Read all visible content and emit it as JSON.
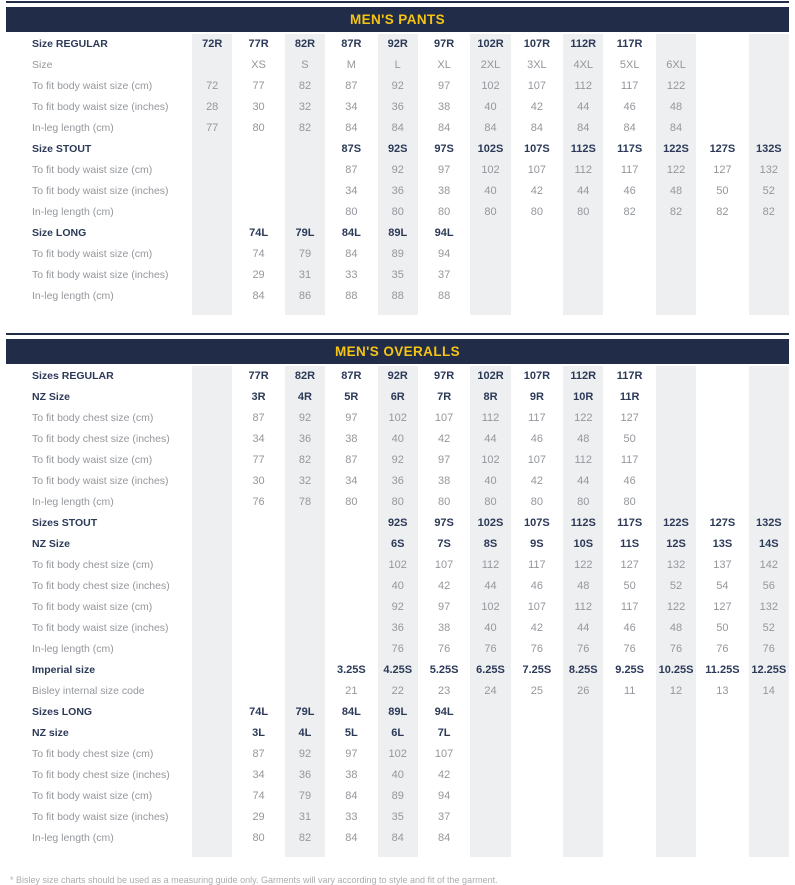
{
  "theme": {
    "navy": "#202c48",
    "yellow": "#f6c413",
    "band": "#eeeff1",
    "text-gray": "#94979c",
    "text-navy": "#2c3a58",
    "footnote-gray": "#a9acb0"
  },
  "footnote": "* Bisley size charts should be used as a measuring guide only. Garments will vary according to style and fit of the garment.",
  "tables": [
    {
      "title": "MEN'S PANTS",
      "rows": [
        {
          "label": "Size REGULAR",
          "style": "bold",
          "cells": [
            "72R",
            "77R",
            "82R",
            "87R",
            "92R",
            "97R",
            "102R",
            "107R",
            "112R",
            "117R",
            "",
            "",
            ""
          ]
        },
        {
          "label": "Size",
          "style": "normal",
          "cells": [
            "",
            "XS",
            "S",
            "M",
            "L",
            "XL",
            "2XL",
            "3XL",
            "4XL",
            "5XL",
            "6XL",
            "",
            ""
          ]
        },
        {
          "label": "To fit body waist size (cm)",
          "style": "normal",
          "cells": [
            "72",
            "77",
            "82",
            "87",
            "92",
            "97",
            "102",
            "107",
            "112",
            "117",
            "122",
            "",
            ""
          ]
        },
        {
          "label": "To fit body waist size (inches)",
          "style": "normal",
          "cells": [
            "28",
            "30",
            "32",
            "34",
            "36",
            "38",
            "40",
            "42",
            "44",
            "46",
            "48",
            "",
            ""
          ]
        },
        {
          "label": "In-leg length (cm)",
          "style": "normal",
          "cells": [
            "77",
            "80",
            "82",
            "84",
            "84",
            "84",
            "84",
            "84",
            "84",
            "84",
            "84",
            "",
            ""
          ]
        },
        {
          "label": "Size STOUT",
          "style": "bold",
          "cells": [
            "",
            "",
            "",
            "87S",
            "92S",
            "97S",
            "102S",
            "107S",
            "112S",
            "117S",
            "122S",
            "127S",
            "132S"
          ]
        },
        {
          "label": "To fit body waist size (cm)",
          "style": "normal",
          "cells": [
            "",
            "",
            "",
            "87",
            "92",
            "97",
            "102",
            "107",
            "112",
            "117",
            "122",
            "127",
            "132"
          ]
        },
        {
          "label": "To fit body waist size (inches)",
          "style": "normal",
          "cells": [
            "",
            "",
            "",
            "34",
            "36",
            "38",
            "40",
            "42",
            "44",
            "46",
            "48",
            "50",
            "52"
          ]
        },
        {
          "label": "In-leg length (cm)",
          "style": "normal",
          "cells": [
            "",
            "",
            "",
            "80",
            "80",
            "80",
            "80",
            "80",
            "80",
            "82",
            "82",
            "82",
            "82"
          ]
        },
        {
          "label": "Size LONG",
          "style": "bold",
          "cells": [
            "",
            "74L",
            "79L",
            "84L",
            "89L",
            "94L",
            "",
            "",
            "",
            "",
            "",
            "",
            ""
          ]
        },
        {
          "label": "To fit body waist size (cm)",
          "style": "normal",
          "cells": [
            "",
            "74",
            "79",
            "84",
            "89",
            "94",
            "",
            "",
            "",
            "",
            "",
            "",
            ""
          ]
        },
        {
          "label": "To fit body waist size (inches)",
          "style": "normal",
          "cells": [
            "",
            "29",
            "31",
            "33",
            "35",
            "37",
            "",
            "",
            "",
            "",
            "",
            "",
            ""
          ]
        },
        {
          "label": "In-leg length (cm)",
          "style": "normal",
          "cells": [
            "",
            "84",
            "86",
            "88",
            "88",
            "88",
            "",
            "",
            "",
            "",
            "",
            "",
            ""
          ]
        }
      ]
    },
    {
      "title": "MEN'S OVERALLS",
      "rows": [
        {
          "label": "Sizes REGULAR",
          "style": "bold",
          "cells": [
            "",
            "77R",
            "82R",
            "87R",
            "92R",
            "97R",
            "102R",
            "107R",
            "112R",
            "117R",
            "",
            "",
            ""
          ]
        },
        {
          "label": "NZ Size",
          "style": "bold",
          "cells": [
            "",
            "3R",
            "4R",
            "5R",
            "6R",
            "7R",
            "8R",
            "9R",
            "10R",
            "11R",
            "",
            "",
            ""
          ]
        },
        {
          "label": "To fit body chest size (cm)",
          "style": "normal",
          "cells": [
            "",
            "87",
            "92",
            "97",
            "102",
            "107",
            "112",
            "117",
            "122",
            "127",
            "",
            "",
            ""
          ]
        },
        {
          "label": "To fit body chest size (inches)",
          "style": "normal",
          "cells": [
            "",
            "34",
            "36",
            "38",
            "40",
            "42",
            "44",
            "46",
            "48",
            "50",
            "",
            "",
            ""
          ]
        },
        {
          "label": "To fit body waist size (cm)",
          "style": "normal",
          "cells": [
            "",
            "77",
            "82",
            "87",
            "92",
            "97",
            "102",
            "107",
            "112",
            "117",
            "",
            "",
            ""
          ]
        },
        {
          "label": "To fit body waist size (inches)",
          "style": "normal",
          "cells": [
            "",
            "30",
            "32",
            "34",
            "36",
            "38",
            "40",
            "42",
            "44",
            "46",
            "",
            "",
            ""
          ]
        },
        {
          "label": "In-leg length (cm)",
          "style": "normal",
          "cells": [
            "",
            "76",
            "78",
            "80",
            "80",
            "80",
            "80",
            "80",
            "80",
            "80",
            "",
            "",
            ""
          ]
        },
        {
          "label": "Sizes STOUT",
          "style": "bold",
          "cells": [
            "",
            "",
            "",
            "",
            "92S",
            "97S",
            "102S",
            "107S",
            "112S",
            "117S",
            "122S",
            "127S",
            "132S"
          ]
        },
        {
          "label": "NZ Size",
          "style": "bold",
          "cells": [
            "",
            "",
            "",
            "",
            "6S",
            "7S",
            "8S",
            "9S",
            "10S",
            "11S",
            "12S",
            "13S",
            "14S"
          ]
        },
        {
          "label": "To fit body chest size (cm)",
          "style": "normal",
          "cells": [
            "",
            "",
            "",
            "",
            "102",
            "107",
            "112",
            "117",
            "122",
            "127",
            "132",
            "137",
            "142"
          ]
        },
        {
          "label": "To fit body chest size (inches)",
          "style": "normal",
          "cells": [
            "",
            "",
            "",
            "",
            "40",
            "42",
            "44",
            "46",
            "48",
            "50",
            "52",
            "54",
            "56"
          ]
        },
        {
          "label": "To fit body waist size (cm)",
          "style": "normal",
          "cells": [
            "",
            "",
            "",
            "",
            "92",
            "97",
            "102",
            "107",
            "112",
            "117",
            "122",
            "127",
            "132"
          ]
        },
        {
          "label": "To fit body waist size (inches)",
          "style": "normal",
          "cells": [
            "",
            "",
            "",
            "",
            "36",
            "38",
            "40",
            "42",
            "44",
            "46",
            "48",
            "50",
            "52"
          ]
        },
        {
          "label": "In-leg length (cm)",
          "style": "normal",
          "cells": [
            "",
            "",
            "",
            "",
            "76",
            "76",
            "76",
            "76",
            "76",
            "76",
            "76",
            "76",
            "76"
          ]
        },
        {
          "label": "Imperial size",
          "style": "bold",
          "cells": [
            "",
            "",
            "",
            "3.25S",
            "4.25S",
            "5.25S",
            "6.25S",
            "7.25S",
            "8.25S",
            "9.25S",
            "10.25S",
            "11.25S",
            "12.25S"
          ]
        },
        {
          "label": "Bisley internal size code",
          "style": "normal",
          "cells": [
            "",
            "",
            "",
            "21",
            "22",
            "23",
            "24",
            "25",
            "26",
            "11",
            "12",
            "13",
            "14"
          ]
        },
        {
          "label": "Sizes LONG",
          "style": "bold",
          "cells": [
            "",
            "74L",
            "79L",
            "84L",
            "89L",
            "94L",
            "",
            "",
            "",
            "",
            "",
            "",
            ""
          ]
        },
        {
          "label": "NZ size",
          "style": "bold",
          "cells": [
            "",
            "3L",
            "4L",
            "5L",
            "6L",
            "7L",
            "",
            "",
            "",
            "",
            "",
            "",
            ""
          ]
        },
        {
          "label": "To fit body chest size (cm)",
          "style": "normal",
          "cells": [
            "",
            "87",
            "92",
            "97",
            "102",
            "107",
            "",
            "",
            "",
            "",
            "",
            "",
            ""
          ]
        },
        {
          "label": "To fit body chest size (inches)",
          "style": "normal",
          "cells": [
            "",
            "34",
            "36",
            "38",
            "40",
            "42",
            "",
            "",
            "",
            "",
            "",
            "",
            ""
          ]
        },
        {
          "label": "To fit body waist size (cm)",
          "style": "normal",
          "cells": [
            "",
            "74",
            "79",
            "84",
            "89",
            "94",
            "",
            "",
            "",
            "",
            "",
            "",
            ""
          ]
        },
        {
          "label": "To fit body waist size (inches)",
          "style": "normal",
          "cells": [
            "",
            "29",
            "31",
            "33",
            "35",
            "37",
            "",
            "",
            "",
            "",
            "",
            "",
            ""
          ]
        },
        {
          "label": "In-leg length (cm)",
          "style": "normal",
          "cells": [
            "",
            "80",
            "82",
            "84",
            "84",
            "84",
            "",
            "",
            "",
            "",
            "",
            "",
            ""
          ]
        }
      ]
    }
  ]
}
